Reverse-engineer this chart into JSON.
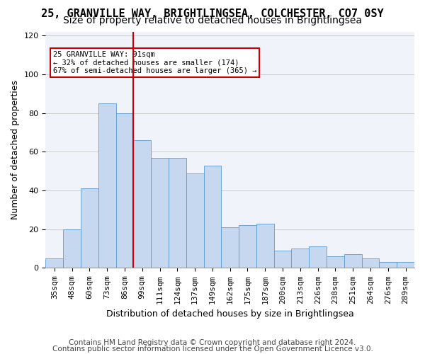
{
  "title1": "25, GRANVILLE WAY, BRIGHTLINGSEA, COLCHESTER, CO7 0SY",
  "title2": "Size of property relative to detached houses in Brightlingsea",
  "xlabel": "Distribution of detached houses by size in Brightlingsea",
  "ylabel": "Number of detached properties",
  "footer1": "Contains HM Land Registry data © Crown copyright and database right 2024.",
  "footer2": "Contains public sector information licensed under the Open Government Licence v3.0.",
  "annotation_title": "25 GRANVILLE WAY: 91sqm",
  "annotation_line1": "← 32% of detached houses are smaller (174)",
  "annotation_line2": "67% of semi-detached houses are larger (365) →",
  "bar_labels": [
    "35sqm",
    "48sqm",
    "60sqm",
    "73sqm",
    "86sqm",
    "99sqm",
    "111sqm",
    "124sqm",
    "137sqm",
    "149sqm",
    "162sqm",
    "175sqm",
    "187sqm",
    "200sqm",
    "213sqm",
    "226sqm",
    "238sqm",
    "251sqm",
    "264sqm",
    "276sqm",
    "289sqm"
  ],
  "bar_values": [
    5,
    20,
    41,
    85,
    80,
    66,
    57,
    57,
    49,
    53,
    21,
    22,
    23,
    9,
    10,
    11,
    6,
    7,
    5,
    3,
    3
  ],
  "bar_color": "#c5d8f0",
  "bar_edge_color": "#5b9bd5",
  "red_line_x": 5.0,
  "red_line_color": "#cc0000",
  "annotation_box_color": "#ffffff",
  "annotation_box_edge": "#cc0000",
  "ylim": [
    0,
    122
  ],
  "yticks": [
    0,
    20,
    40,
    60,
    80,
    100,
    120
  ],
  "grid_color": "#cccccc",
  "bg_color": "#f0f4fa",
  "title1_fontsize": 11,
  "title2_fontsize": 10,
  "ylabel_fontsize": 9,
  "xlabel_fontsize": 9,
  "tick_fontsize": 8,
  "footer_fontsize": 7.5
}
